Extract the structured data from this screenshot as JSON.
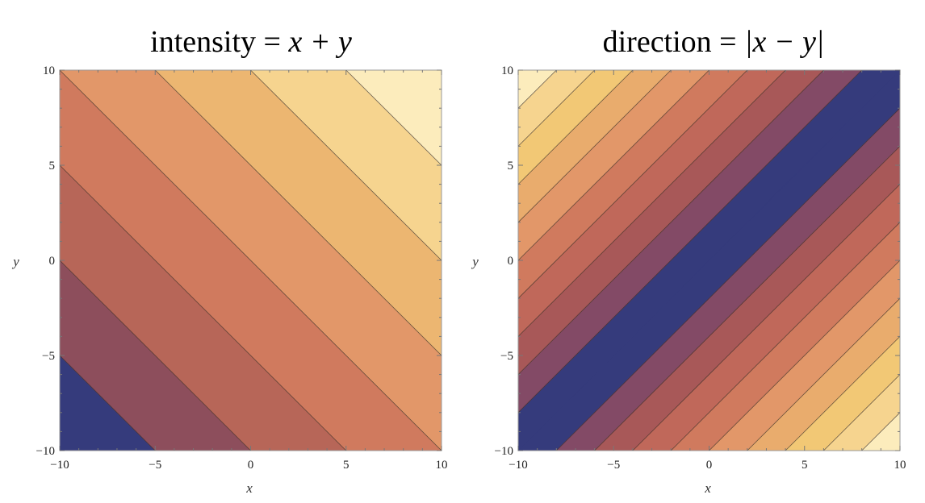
{
  "chart_data": [
    {
      "type": "contour",
      "title": "intensity = x + y",
      "title_parts": {
        "lhs": "intensity",
        "eq": " = ",
        "rhs": "x + y"
      },
      "xlabel": "x",
      "ylabel": "y",
      "xlim": [
        -10,
        10
      ],
      "ylim": [
        -10,
        10
      ],
      "xticks": [
        -10,
        -5,
        0,
        5,
        10
      ],
      "yticks": [
        -10,
        -5,
        0,
        5,
        10
      ],
      "xtick_labels": [
        "−10",
        "−5",
        "0",
        "5",
        "10"
      ],
      "ytick_labels": [
        "−10",
        "−5",
        "0",
        "5",
        "10"
      ],
      "function": "x + y",
      "contour_levels": [
        -15,
        -10,
        -5,
        0,
        5,
        10,
        15
      ],
      "band_colors": [
        "#353b7c",
        "#8d4e5c",
        "#b76658",
        "#d07a5e",
        "#e29769",
        "#ecb671",
        "#f6d48f",
        "#fcecbc"
      ]
    },
    {
      "type": "contour",
      "title": "direction = |x − y|",
      "title_parts": {
        "lhs": "direction",
        "eq": " = ",
        "rhs": "|x − y|"
      },
      "xlabel": "x",
      "ylabel": "y",
      "xlim": [
        -10,
        10
      ],
      "ylim": [
        -10,
        10
      ],
      "xticks": [
        -10,
        -5,
        0,
        5,
        10
      ],
      "yticks": [
        -10,
        -5,
        0,
        5,
        10
      ],
      "xtick_labels": [
        "−10",
        "−5",
        "0",
        "5",
        "10"
      ],
      "ytick_labels": [
        "−10",
        "−5",
        "0",
        "5",
        "10"
      ],
      "function": "abs(x - y)",
      "contour_levels": [
        2,
        4,
        6,
        8,
        10,
        12,
        14,
        16,
        18
      ],
      "band_colors": [
        "#353b7c",
        "#834a66",
        "#a85858",
        "#c0685a",
        "#d07a5e",
        "#e29769",
        "#e9ac6d",
        "#f2c875",
        "#f6d48f",
        "#fcecbc"
      ]
    }
  ]
}
